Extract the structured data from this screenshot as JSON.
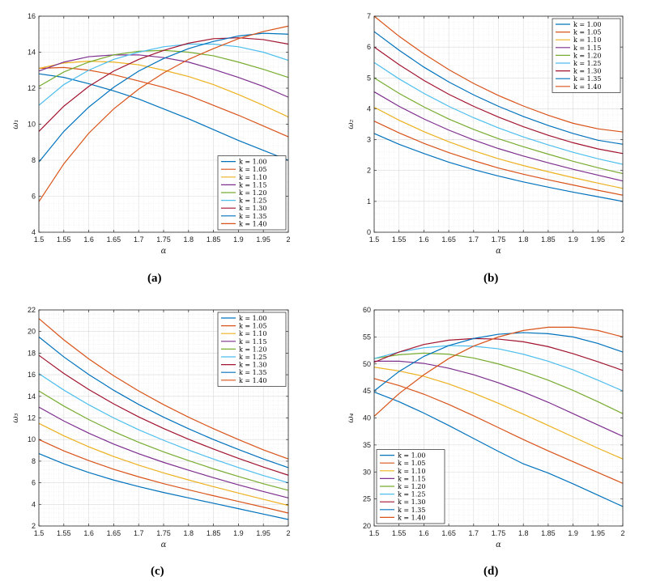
{
  "figure": {
    "captions": [
      "(a)",
      "(b)",
      "(c)",
      "(d)"
    ]
  },
  "colors": [
    "#0072BD",
    "#D95319",
    "#EDB120",
    "#7E2F8E",
    "#77AC30",
    "#4DBEEE",
    "#A2142F",
    "#0072BD",
    "#D95319"
  ],
  "chart_data": [
    {
      "type": "line",
      "caption": "(a)",
      "xlabel": "α",
      "ylabel": "ω₁",
      "xlim": [
        1.5,
        2
      ],
      "ylim": [
        4,
        16
      ],
      "xticks": [
        "1.5",
        "1.55",
        "1.6",
        "1.65",
        "1.7",
        "1.75",
        "1.8",
        "1.85",
        "1.9",
        "1.95",
        "2"
      ],
      "yticks": [
        "4",
        "6",
        "8",
        "10",
        "12",
        "14",
        "16"
      ],
      "grid": true,
      "legend_position": "bottom-right",
      "x": [
        1.5,
        1.55,
        1.6,
        1.65,
        1.7,
        1.75,
        1.8,
        1.85,
        1.9,
        1.95,
        2.0
      ],
      "series": [
        {
          "name": "k = 1.00",
          "values": [
            12.8,
            12.6,
            12.25,
            11.85,
            11.4,
            10.85,
            10.3,
            9.7,
            9.1,
            8.55,
            8.0
          ]
        },
        {
          "name": "k = 1.05",
          "values": [
            13.1,
            13.15,
            13.0,
            12.75,
            12.4,
            12.05,
            11.6,
            11.05,
            10.5,
            9.9,
            9.3
          ]
        },
        {
          "name": "k = 1.10",
          "values": [
            13.1,
            13.4,
            13.5,
            13.45,
            13.3,
            13.0,
            12.65,
            12.2,
            11.65,
            11.05,
            10.4
          ]
        },
        {
          "name": "k = 1.15",
          "values": [
            12.95,
            13.45,
            13.75,
            13.85,
            13.85,
            13.7,
            13.45,
            13.05,
            12.6,
            12.1,
            11.5
          ]
        },
        {
          "name": "k = 1.20",
          "values": [
            12.1,
            12.9,
            13.45,
            13.85,
            14.05,
            14.1,
            14.0,
            13.8,
            13.45,
            13.05,
            12.6
          ]
        },
        {
          "name": "k = 1.25",
          "values": [
            11.05,
            12.2,
            13.0,
            13.6,
            14.0,
            14.3,
            14.45,
            14.45,
            14.3,
            14.0,
            13.55
          ]
        },
        {
          "name": "k = 1.30",
          "values": [
            9.6,
            11.0,
            12.1,
            12.95,
            13.6,
            14.1,
            14.5,
            14.75,
            14.8,
            14.7,
            14.45
          ]
        },
        {
          "name": "k = 1.35",
          "values": [
            7.9,
            9.6,
            10.95,
            12.05,
            12.95,
            13.65,
            14.2,
            14.6,
            14.9,
            15.05,
            15.0
          ]
        },
        {
          "name": "k = 1.40",
          "values": [
            5.7,
            7.8,
            9.5,
            10.85,
            11.95,
            12.85,
            13.6,
            14.2,
            14.75,
            15.15,
            15.45
          ]
        }
      ]
    },
    {
      "type": "line",
      "caption": "(b)",
      "xlabel": "α",
      "ylabel": "ω₂",
      "xlim": [
        1.5,
        2
      ],
      "ylim": [
        0,
        7
      ],
      "xticks": [
        "1.5",
        "1.55",
        "1.6",
        "1.65",
        "1.7",
        "1.75",
        "1.8",
        "1.85",
        "1.9",
        "1.95",
        "2"
      ],
      "yticks": [
        "0",
        "1",
        "2",
        "3",
        "4",
        "5",
        "6",
        "7"
      ],
      "grid": true,
      "legend_position": "top-right",
      "x": [
        1.5,
        1.55,
        1.6,
        1.65,
        1.7,
        1.75,
        1.8,
        1.85,
        1.9,
        1.95,
        2.0
      ],
      "series": [
        {
          "name": "k = 1.00",
          "values": [
            3.2,
            2.85,
            2.55,
            2.27,
            2.03,
            1.82,
            1.63,
            1.46,
            1.3,
            1.15,
            1.0
          ]
        },
        {
          "name": "k = 1.05",
          "values": [
            3.6,
            3.22,
            2.88,
            2.58,
            2.32,
            2.08,
            1.88,
            1.7,
            1.53,
            1.36,
            1.2
          ]
        },
        {
          "name": "k = 1.10",
          "values": [
            4.05,
            3.63,
            3.26,
            2.93,
            2.64,
            2.38,
            2.16,
            1.96,
            1.77,
            1.59,
            1.42
          ]
        },
        {
          "name": "k = 1.15",
          "values": [
            4.55,
            4.08,
            3.67,
            3.31,
            2.99,
            2.71,
            2.47,
            2.25,
            2.04,
            1.85,
            1.66
          ]
        },
        {
          "name": "k = 1.20",
          "values": [
            5.0,
            4.5,
            4.06,
            3.67,
            3.33,
            3.03,
            2.77,
            2.53,
            2.3,
            2.09,
            1.9
          ]
        },
        {
          "name": "k = 1.25",
          "values": [
            5.5,
            4.97,
            4.5,
            4.08,
            3.71,
            3.38,
            3.09,
            2.83,
            2.59,
            2.38,
            2.2
          ]
        },
        {
          "name": "k = 1.30",
          "values": [
            6.0,
            5.43,
            4.92,
            4.47,
            4.08,
            3.73,
            3.42,
            3.14,
            2.9,
            2.7,
            2.55
          ]
        },
        {
          "name": "k = 1.35",
          "values": [
            6.5,
            5.9,
            5.35,
            4.87,
            4.45,
            4.08,
            3.75,
            3.46,
            3.2,
            2.98,
            2.85
          ]
        },
        {
          "name": "k = 1.40",
          "values": [
            7.0,
            6.35,
            5.78,
            5.27,
            4.82,
            4.43,
            4.09,
            3.79,
            3.53,
            3.35,
            3.25
          ]
        }
      ]
    },
    {
      "type": "line",
      "caption": "(c)",
      "xlabel": "α",
      "ylabel": "ω₃",
      "xlim": [
        1.5,
        2
      ],
      "ylim": [
        2,
        22
      ],
      "xticks": [
        "1.5",
        "1.55",
        "1.6",
        "1.65",
        "1.7",
        "1.75",
        "1.8",
        "1.85",
        "1.9",
        "1.95",
        "2"
      ],
      "yticks": [
        "2",
        "4",
        "6",
        "8",
        "10",
        "12",
        "14",
        "16",
        "18",
        "20",
        "22"
      ],
      "grid": true,
      "legend_position": "top-right",
      "x": [
        1.5,
        1.55,
        1.6,
        1.65,
        1.7,
        1.75,
        1.8,
        1.85,
        1.9,
        1.95,
        2.0
      ],
      "series": [
        {
          "name": "k = 1.00",
          "values": [
            8.7,
            7.75,
            6.95,
            6.25,
            5.65,
            5.1,
            4.6,
            4.1,
            3.6,
            3.1,
            2.6
          ]
        },
        {
          "name": "k = 1.05",
          "values": [
            10.0,
            8.95,
            8.05,
            7.25,
            6.55,
            5.92,
            5.35,
            4.8,
            4.27,
            3.74,
            3.2
          ]
        },
        {
          "name": "k = 1.10",
          "values": [
            11.5,
            10.35,
            9.33,
            8.43,
            7.63,
            6.91,
            6.26,
            5.64,
            5.05,
            4.47,
            3.9
          ]
        },
        {
          "name": "k = 1.15",
          "values": [
            13.0,
            11.72,
            10.59,
            9.58,
            8.69,
            7.89,
            7.16,
            6.47,
            5.81,
            5.19,
            4.6
          ]
        },
        {
          "name": "k = 1.20",
          "values": [
            14.5,
            13.1,
            11.85,
            10.74,
            9.75,
            8.86,
            8.05,
            7.29,
            6.58,
            5.91,
            5.3
          ]
        },
        {
          "name": "k = 1.25",
          "values": [
            16.1,
            14.58,
            13.22,
            12.0,
            10.91,
            9.93,
            9.03,
            8.19,
            7.41,
            6.67,
            6.0
          ]
        },
        {
          "name": "k = 1.30",
          "values": [
            17.8,
            16.12,
            14.63,
            13.3,
            12.1,
            11.02,
            10.03,
            9.12,
            8.26,
            7.45,
            6.7
          ]
        },
        {
          "name": "k = 1.35",
          "values": [
            19.5,
            17.65,
            16.02,
            14.56,
            13.25,
            12.07,
            11.0,
            10.0,
            9.08,
            8.2,
            7.4
          ]
        },
        {
          "name": "k = 1.40",
          "values": [
            21.2,
            19.23,
            17.47,
            15.9,
            14.5,
            13.23,
            12.07,
            11.0,
            10.0,
            9.05,
            8.2
          ]
        }
      ]
    },
    {
      "type": "line",
      "caption": "(d)",
      "xlabel": "α",
      "ylabel": "ω₄",
      "xlim": [
        1.5,
        2
      ],
      "ylim": [
        20,
        60
      ],
      "xticks": [
        "1.5",
        "1.55",
        "1.6",
        "1.65",
        "1.7",
        "1.75",
        "1.8",
        "1.85",
        "1.9",
        "1.95",
        "2"
      ],
      "yticks": [
        "20",
        "25",
        "30",
        "35",
        "40",
        "45",
        "50",
        "55",
        "60"
      ],
      "grid": true,
      "legend_position": "bottom-left",
      "x": [
        1.5,
        1.55,
        1.6,
        1.65,
        1.7,
        1.75,
        1.8,
        1.85,
        1.9,
        1.95,
        2.0
      ],
      "series": [
        {
          "name": "k = 1.00",
          "values": [
            44.8,
            43.0,
            40.9,
            38.6,
            36.2,
            33.8,
            31.5,
            29.8,
            27.8,
            25.7,
            23.6
          ]
        },
        {
          "name": "k = 1.05",
          "values": [
            47.3,
            46.0,
            44.4,
            42.5,
            40.4,
            38.2,
            36.0,
            33.9,
            31.9,
            29.9,
            27.9
          ]
        },
        {
          "name": "k = 1.10",
          "values": [
            49.4,
            48.7,
            47.7,
            46.3,
            44.6,
            42.7,
            40.7,
            38.6,
            36.5,
            34.4,
            32.4
          ]
        },
        {
          "name": "k = 1.15",
          "values": [
            50.5,
            50.5,
            50.1,
            49.2,
            48.0,
            46.5,
            44.8,
            42.9,
            40.8,
            38.7,
            36.6
          ]
        },
        {
          "name": "k = 1.20",
          "values": [
            51.0,
            51.7,
            52.0,
            51.8,
            51.1,
            50.0,
            48.6,
            47.0,
            45.1,
            43.0,
            40.8
          ]
        },
        {
          "name": "k = 1.25",
          "values": [
            51.0,
            52.2,
            53.0,
            53.4,
            53.3,
            52.8,
            51.8,
            50.5,
            48.9,
            47.0,
            45.0
          ]
        },
        {
          "name": "k = 1.30",
          "values": [
            50.3,
            52.2,
            53.6,
            54.4,
            54.7,
            54.6,
            54.1,
            53.2,
            51.9,
            50.4,
            48.8
          ]
        },
        {
          "name": "k = 1.35",
          "values": [
            45.0,
            48.6,
            51.4,
            53.4,
            54.7,
            55.5,
            55.8,
            55.6,
            55.0,
            53.8,
            52.2
          ]
        },
        {
          "name": "k = 1.40",
          "values": [
            40.3,
            44.5,
            48.0,
            51.0,
            53.3,
            55.0,
            56.2,
            56.8,
            56.8,
            56.2,
            55.0
          ]
        }
      ]
    }
  ]
}
